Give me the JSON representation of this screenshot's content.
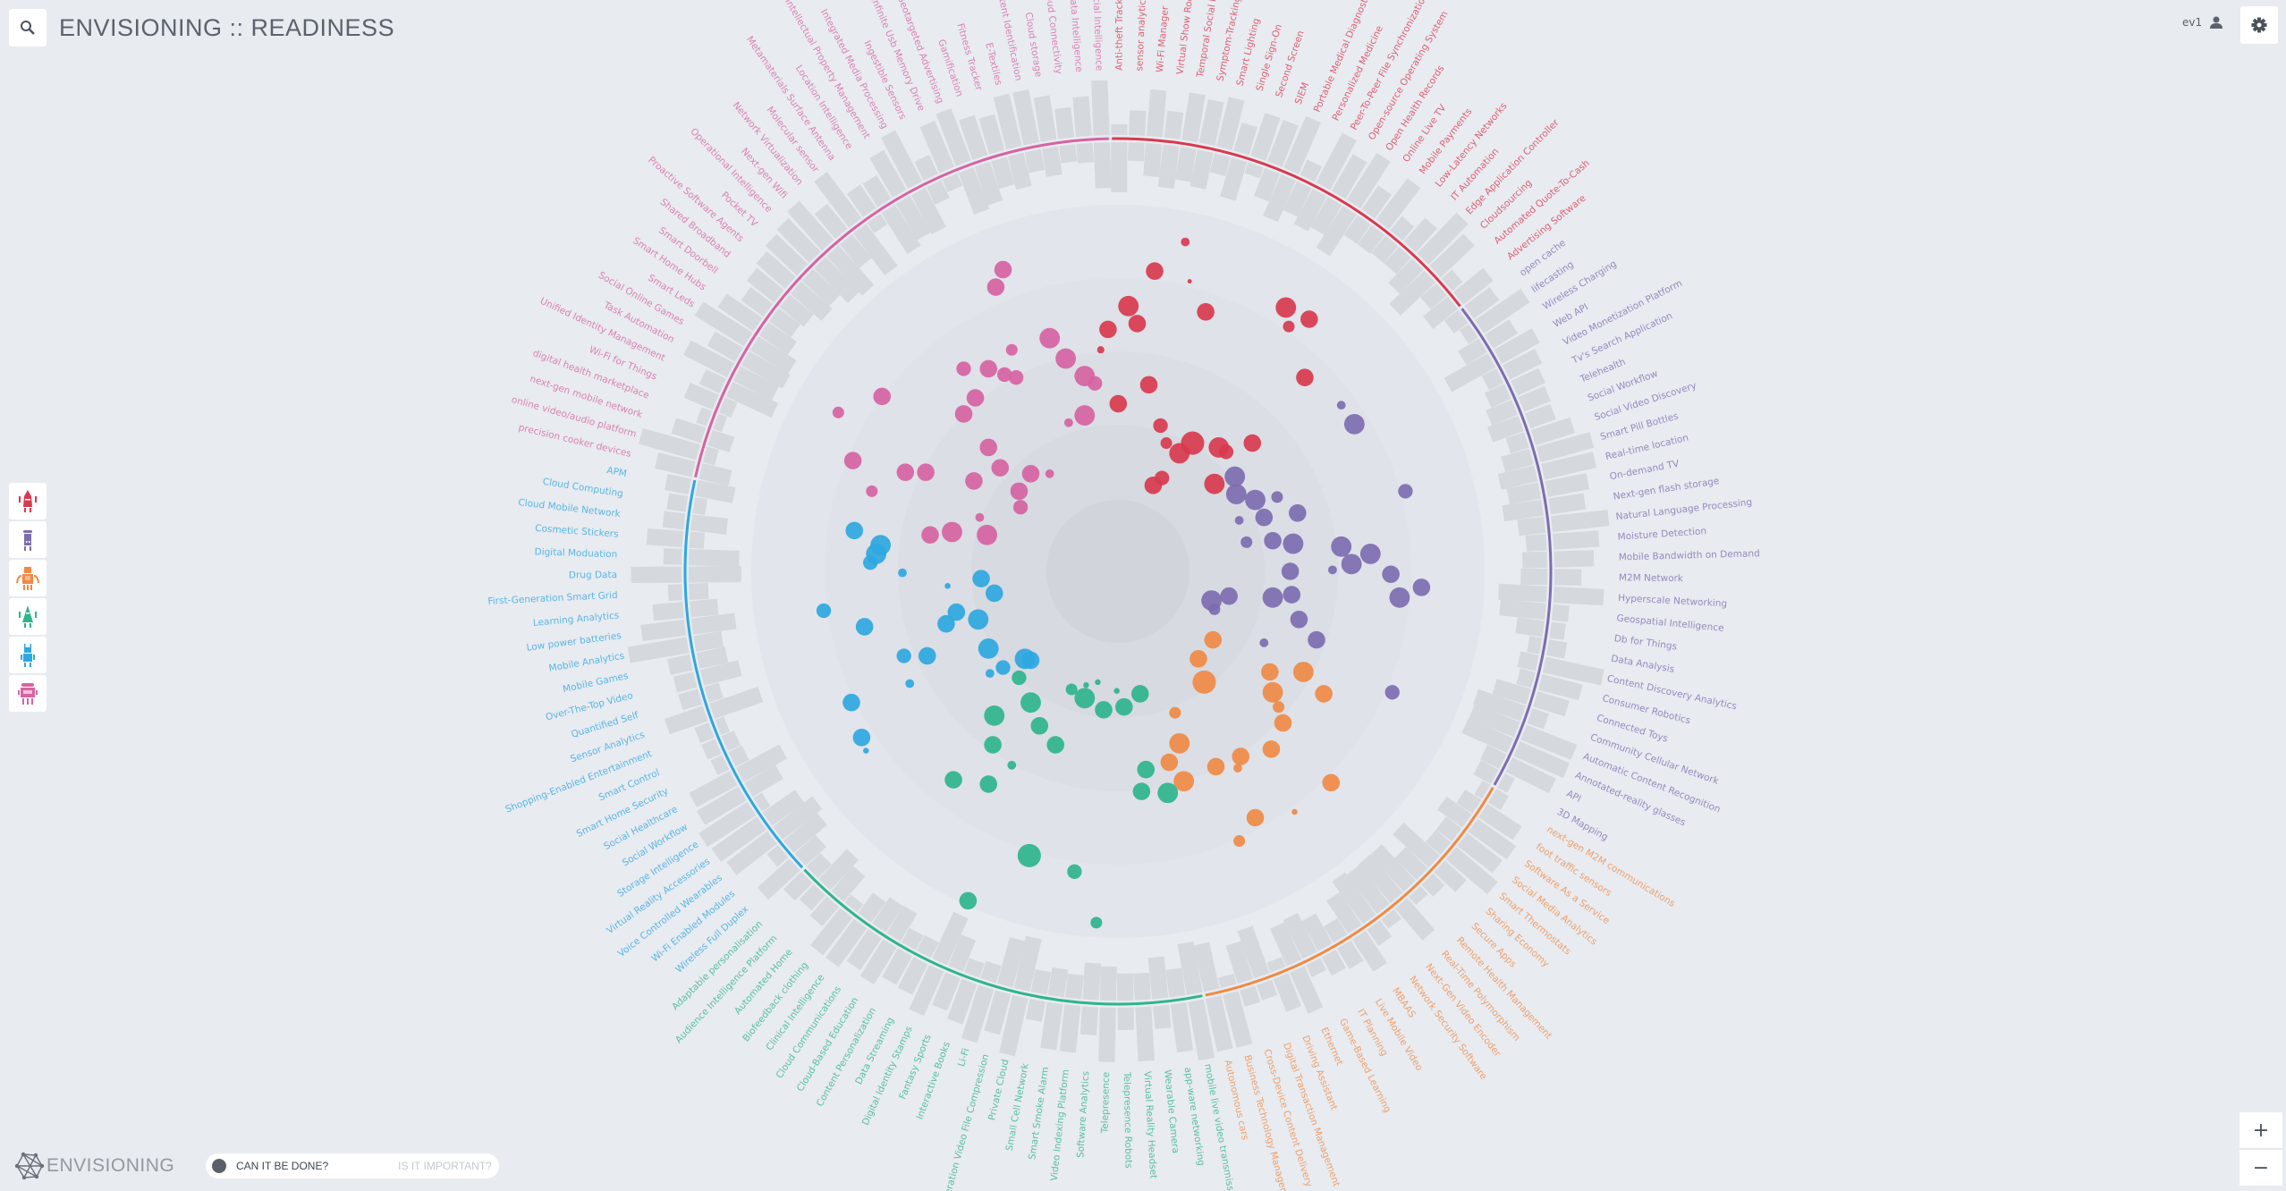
{
  "header": {
    "title": "ENVISIONING :: READINESS",
    "user": "ev1"
  },
  "icons": {
    "search": "search-icon",
    "settings": "gear-icon",
    "user": "user-icon"
  },
  "toggle": {
    "active": "CAN IT BE DONE?",
    "inactive": "IS IT IMPORTANT?"
  },
  "logo": {
    "text": "ENVISIONING"
  },
  "zoom": {
    "in": "+",
    "out": "−"
  },
  "robots": [
    {
      "name": "red-robot",
      "color": "#d8394e"
    },
    {
      "name": "purple-robot",
      "color": "#7d6db0"
    },
    {
      "name": "orange-robot",
      "color": "#ef8a45"
    },
    {
      "name": "green-robot",
      "color": "#2fb48c"
    },
    {
      "name": "blue-robot",
      "color": "#2ea7df"
    },
    {
      "name": "pink-robot",
      "color": "#d663a2"
    }
  ],
  "categories": [
    {
      "key": "red",
      "color": "#d8394e",
      "labels": [
        "Anti-theft Tracker",
        "sensor analytics",
        "Wi-Fi Manager",
        "Virtual Show Rooms",
        "Temporal Social Media",
        "Symptom-Tracking App",
        "Smart Lighting",
        "Single Sign-On",
        "Second Screen",
        "SIEM",
        "Portable Medical Diagnostic",
        "Personalized Medicine",
        "Peer-To-Peer File Synchronization",
        "Open-source Operating System",
        "Open Health Records",
        "Online Live TV",
        "Mobile Payments",
        "Low-Latency Networks",
        "IT Automation",
        "Edge Application Controller",
        "Cloudsourcing",
        "Automated Quote-To-Cash",
        "Advertising Software"
      ]
    },
    {
      "key": "purple",
      "color": "#7d6db0",
      "labels": [
        "open cache",
        "lifecasting",
        "Wireless Charging",
        "Web API",
        "Video Monetization Platform",
        "Tv's Search Application",
        "Telehealth",
        "Social Workflow",
        "Social Video Discovery",
        "Smart Pill Bottles",
        "Real-time location",
        "On-demand TV",
        "Next-gen flash storage",
        "Natural Language Processing",
        "Moisture Detection",
        "Mobile Bandwidth on Demand",
        "M2M Network",
        "Hyperscale Networking",
        "Geospatial Intelligence",
        "Db for Things",
        "Data Analysis",
        "Content Discovery Analytics",
        "Consumer Robotics",
        "Connected Toys",
        "Community Cellular Network",
        "Automatic Content Recognition",
        "Annotated-reality glasses",
        "API",
        "3D Mapping"
      ]
    },
    {
      "key": "orange",
      "color": "#ef8a45",
      "labels": [
        "next-gen M2M communications",
        "foot traffic sensors",
        "Software As a Service",
        "Social Media Analytics",
        "Smart Thermostats",
        "Sharing Economy",
        "Secure Apps",
        "Remote Health Management",
        "Real-Time Polymorphism",
        "Next-Gen Video Encoder",
        "Network Security Software",
        "MBAAS",
        "Live Mobile Video",
        "IT Planning",
        "Game-Based Learning",
        "Ethernet",
        "Driving Assistant",
        "Digital Transaction Management",
        "Cross-Device Content Delivery",
        "Business Technology Management",
        "Autonomous cars"
      ]
    },
    {
      "key": "green",
      "color": "#2fb48c",
      "labels": [
        "mobile live video transmission",
        "app-ware networking",
        "Wearable Camera",
        "Virtual Reality Headset",
        "Telepresence Robots",
        "Telepresence",
        "Software Analytics",
        "Video Indexing Platform",
        "Smart Smoke Alarm",
        "Small Cell Network",
        "Private Cloud",
        "Next Generation Video File Compression",
        "Li-Fi",
        "Interactive Books",
        "Fantasy Sports",
        "Digital Identity Stamps",
        "Data Streaming",
        "Content Personalization",
        "Cloud-Based Education",
        "Cloud Communications",
        "Clinical Intelligence",
        "Biofeedback clothing",
        "Automated Home",
        "Audience Intelligence Platform",
        "Adaptable personalisation"
      ]
    },
    {
      "key": "blue",
      "color": "#2ea7df",
      "labels": [
        "Wireless Full Duplex",
        "Wi-Fi Enabled Modules",
        "Voice Controlled Wearables",
        "Virtual Reality Accessories",
        "Storage Intelligence",
        "Social Workflow",
        "Social Healthcare",
        "Smart Home Security",
        "Smart Control",
        "Shopping-Enabled Entertainment",
        "Sensor Analytics",
        "Quantified Self",
        "Over-The-Top Video",
        "Mobile Games",
        "Mobile Analytics",
        "Low power batteries",
        "Learning Analytics",
        "First-Generation Smart Grid",
        "Drug Data",
        "Digital Moduation",
        "Cosmetic Stickers",
        "Cloud Mobile Network",
        "Cloud Computing",
        "APM"
      ]
    },
    {
      "key": "pink",
      "color": "#d663a2",
      "labels": [
        "precision cooker devices",
        "online video/audio platform",
        "next-gen mobile network",
        "digital health marketplace",
        "Wi-Fi for Things",
        "Unified Identity Management",
        "Task Automation",
        "Social Online Games",
        "Smart Leds",
        "Smart Home Hubs",
        "Smart Doorbell",
        "Shared Broadband",
        "Proactive Software Agents",
        "Pocket TV",
        "Operational Intelligence",
        "Next-gen Wifi",
        "Network Virtualization",
        "Molecular sensor",
        "Metamaterials Surface Antenna",
        "Location Intelligence",
        "Intellectual Property Management",
        "Integrated Media Processing",
        "Ingestible Sensors",
        "Infinite Usb Memory Drive",
        "Geotargeted Advertising",
        "Gamification",
        "Fitness Tracker",
        "E-Textiles",
        "Digital Content Identification",
        "Cloud storage",
        "Cloud Connectivity",
        "Big Data Intelligence",
        "Artificial Intelligence"
      ]
    }
  ]
}
